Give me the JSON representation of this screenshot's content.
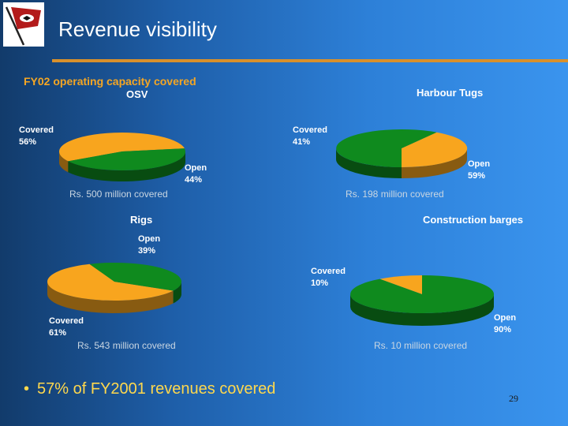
{
  "slide": {
    "title": "Revenue visibility",
    "subtitle": "FY02 operating capacity covered",
    "bullet": "57% of FY2001 revenues covered",
    "page_number": "29"
  },
  "colors": {
    "background_left": "#123b6b",
    "background_right": "#3a94ee",
    "rule": "#d8902c",
    "covered": "#f8a51e",
    "open": "#0f8a1e",
    "chart_title": "#ffffff",
    "callout": "#ffffff",
    "caption": "#c9d6e2",
    "bullet_text": "#ffd84d",
    "subtitle": "#f5a623"
  },
  "icons": {
    "logo": "company-flag-logo"
  },
  "chart_data": [
    {
      "type": "pie",
      "title": "OSV",
      "slices": [
        {
          "label": "Covered",
          "value": 56,
          "display": "56%"
        },
        {
          "label": "Open",
          "value": 44,
          "display": "44%"
        }
      ],
      "caption": "Rs. 500 million covered"
    },
    {
      "type": "pie",
      "title": "Harbour Tugs",
      "slices": [
        {
          "label": "Covered",
          "value": 41,
          "display": "41%"
        },
        {
          "label": "Open",
          "value": 59,
          "display": "59%"
        }
      ],
      "caption": "Rs. 198 million covered"
    },
    {
      "type": "pie",
      "title": "Rigs",
      "slices": [
        {
          "label": "Covered",
          "value": 61,
          "display": "61%"
        },
        {
          "label": "Open",
          "value": 39,
          "display": "39%"
        }
      ],
      "caption": "Rs. 543 million covered"
    },
    {
      "type": "pie",
      "title": "Construction barges",
      "slices": [
        {
          "label": "Covered",
          "value": 10,
          "display": "10%"
        },
        {
          "label": "Open",
          "value": 90,
          "display": "90%"
        }
      ],
      "caption": "Rs. 10 million covered"
    }
  ]
}
